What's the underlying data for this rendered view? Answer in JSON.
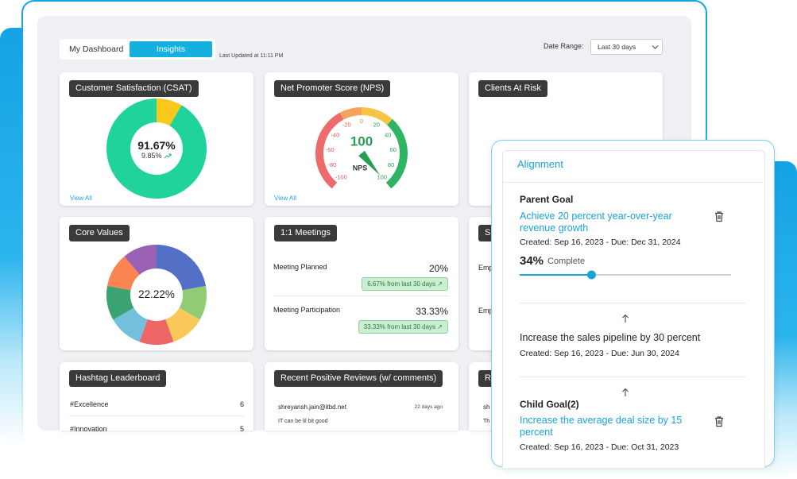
{
  "tabs": [
    "My Dashboard",
    "Insights"
  ],
  "last_updated": "Last Updated at 11:11 PM",
  "date_range": {
    "label": "Date Range:",
    "value": "Last 30 days"
  },
  "csat": {
    "title": "Customer Satisfaction (CSAT)",
    "center": "91.67%",
    "change": "9.85%",
    "link": "View All",
    "segments": [
      {
        "value": 8.33,
        "color": "#f8c81c"
      },
      {
        "value": 91.67,
        "color": "#20d29b"
      }
    ]
  },
  "nps": {
    "title": "Net Promoter Score (NPS)",
    "score": "100",
    "label": "NPS",
    "link": "View All",
    "value": 100,
    "ticks": [
      -100,
      -80,
      -60,
      -40,
      -20,
      0,
      20,
      40,
      60,
      80,
      100
    ],
    "bands": [
      {
        "from": -100,
        "to": -20,
        "color": "#ef6b6b"
      },
      {
        "from": -20,
        "to": 0,
        "color": "#f5a25d"
      },
      {
        "from": 0,
        "to": 30,
        "color": "#f6c544"
      },
      {
        "from": 30,
        "to": 100,
        "color": "#2fb562"
      }
    ]
  },
  "clients_at_risk": {
    "title": "Clients At Risk"
  },
  "core_values": {
    "title": "Core Values",
    "center": "22.22%",
    "segments": [
      {
        "value": 22.22,
        "color": "#5470c6"
      },
      {
        "value": 11.11,
        "color": "#91cc75"
      },
      {
        "value": 11.11,
        "color": "#fac858"
      },
      {
        "value": 11.11,
        "color": "#ee6666"
      },
      {
        "value": 11.11,
        "color": "#73c0de"
      },
      {
        "value": 11.11,
        "color": "#3ba272"
      },
      {
        "value": 11.11,
        "color": "#fc8452"
      },
      {
        "value": 11.11,
        "color": "#9a60b4"
      }
    ]
  },
  "meetings": {
    "title": "1:1 Meetings",
    "rows": [
      {
        "label": "Meeting Planned",
        "value": "20%",
        "change": "6.67% from last 30 days"
      },
      {
        "label": "Meeting Participation",
        "value": "33.33%",
        "change": "33.33% from last 30 days"
      }
    ]
  },
  "hashtags": {
    "title": "Hashtag Leaderboard",
    "rows": [
      {
        "tag": "#Excellence",
        "count": 6
      },
      {
        "tag": "#Innovation",
        "count": 5
      }
    ]
  },
  "reviews": {
    "title": "Recent Positive Reviews (w/ comments)",
    "items": [
      {
        "author": "shreyansh.jain@itbd.net",
        "time": "22 days ago",
        "comment": "IT can be lil bit good"
      }
    ]
  },
  "hidden": {
    "row2_title": "Sh",
    "row2_lines": [
      "Emp",
      "Emp"
    ],
    "row3_title": "Re",
    "row3_lines": [
      "sh",
      "Th"
    ]
  },
  "alignment": {
    "title": "Alignment",
    "parent": {
      "heading": "Parent Goal",
      "goal": "Achieve 20 percent year-over-year revenue growth",
      "dates": "Created: Sep 16, 2023 - Due: Dec 31, 2024",
      "progress": 34,
      "progress_label": "34%",
      "progress_text": "Complete"
    },
    "middle": {
      "goal": "Increase the sales pipeline by 30 percent",
      "dates": "Created: Sep 16, 2023 - Due: Jun 30, 2024"
    },
    "child": {
      "heading": "Child Goal(2)",
      "goal": "Increase the average deal size by 15 percent",
      "dates": "Created: Sep 16, 2023 - Due: Oct 31, 2023"
    }
  }
}
